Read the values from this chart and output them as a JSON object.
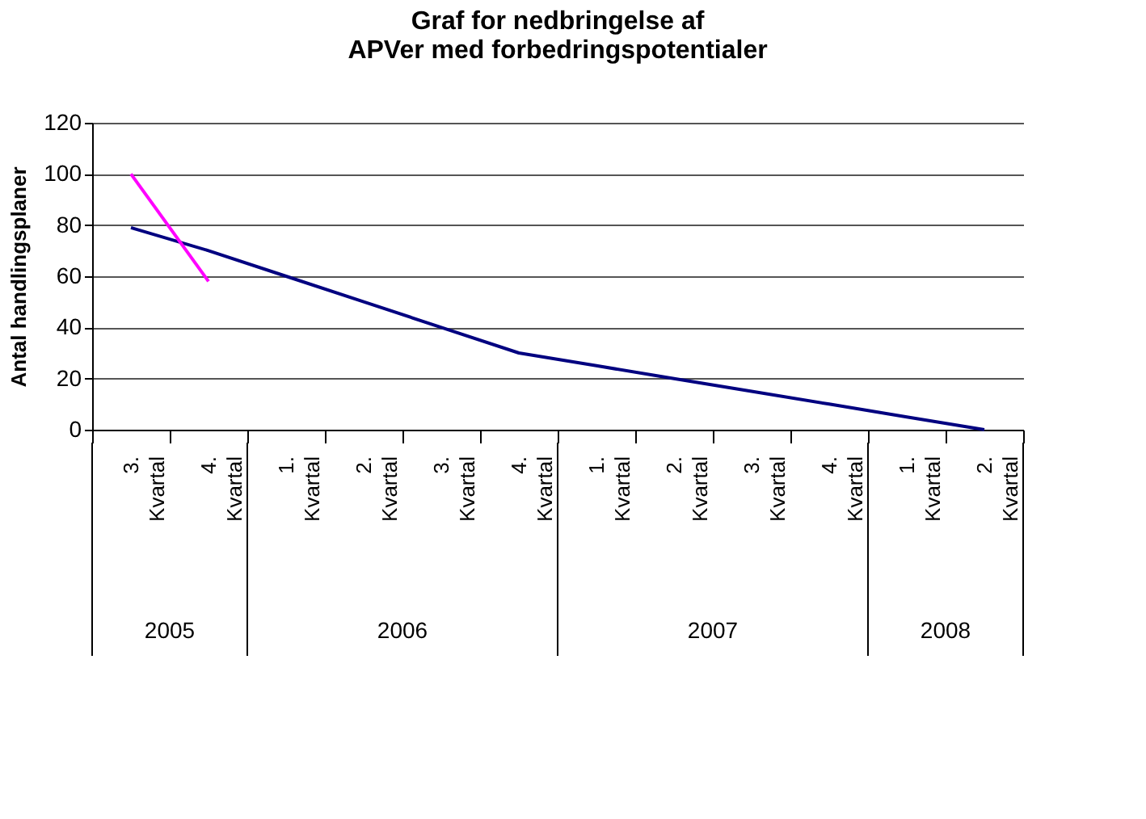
{
  "chart_data": {
    "type": "line",
    "title": "Graf for nedbringelse af APVer med forbedringspotentialer",
    "ylabel": "Antal handlingsplaner",
    "categories": [
      "3. Kvartal",
      "4. Kvartal",
      "1. Kvartal",
      "2. Kvartal",
      "3. Kvartal",
      "4. Kvartal",
      "1. Kvartal",
      "2. Kvartal",
      "3. Kvartal",
      "4. Kvartal",
      "1. Kvartal",
      "2. Kvartal"
    ],
    "series": [
      {
        "color": "#000080",
        "values": [
          79,
          70,
          60,
          50,
          40,
          30,
          25,
          20,
          15,
          10,
          5,
          0
        ]
      },
      {
        "color": "#ff00ff",
        "values": [
          100,
          58,
          null,
          null,
          null,
          null,
          null,
          null,
          null,
          null,
          null,
          null
        ]
      }
    ],
    "annotations": [
      "2005",
      "2006",
      "2007",
      "2008"
    ],
    "ylim": [
      0,
      120
    ],
    "yticks": [
      0,
      20,
      40,
      60,
      80,
      100,
      120
    ],
    "grid": "y",
    "marker": "none",
    "line_style": "solid"
  }
}
